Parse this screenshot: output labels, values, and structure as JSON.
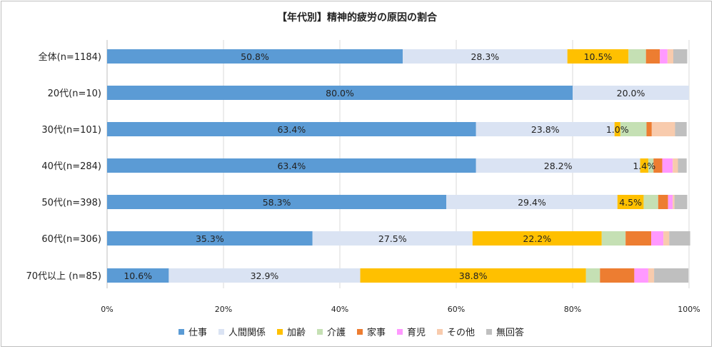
{
  "chart_data": {
    "type": "bar",
    "orientation": "horizontal",
    "stacked": true,
    "title": "【年代別】精神的疲労の原因の割合",
    "categories": [
      "全体(n=1184)",
      "20代(n=10)",
      "30代(n=101)",
      "40代(n=284)",
      "50代(n=398)",
      "60代(n=306)",
      "70代以上 (n=85)"
    ],
    "series": [
      {
        "name": "仕事",
        "color": "#5b9bd5",
        "values": [
          50.8,
          80.0,
          63.4,
          63.4,
          58.3,
          35.3,
          10.6
        ]
      },
      {
        "name": "人間関係",
        "color": "#dae3f3",
        "values": [
          28.3,
          20.0,
          23.8,
          28.2,
          29.4,
          27.5,
          32.9
        ]
      },
      {
        "name": "加齢",
        "color": "#ffc000",
        "values": [
          10.5,
          0,
          1.0,
          1.4,
          4.5,
          22.2,
          38.8
        ]
      },
      {
        "name": "介護",
        "color": "#c5e0b4",
        "values": [
          3.0,
          0,
          4.5,
          0.9,
          2.5,
          4.1,
          2.4
        ]
      },
      {
        "name": "家事",
        "color": "#ed7d31",
        "values": [
          2.4,
          0,
          0.9,
          1.5,
          1.7,
          4.4,
          5.9
        ]
      },
      {
        "name": "育児",
        "color": "#ff99ff",
        "values": [
          1.3,
          0,
          0,
          1.8,
          0.8,
          2.1,
          2.4
        ]
      },
      {
        "name": "その他",
        "color": "#f8cbad",
        "values": [
          1.0,
          0,
          4.0,
          0.9,
          0.3,
          1.0,
          1.0
        ]
      },
      {
        "name": "無回答",
        "color": "#bfbfbf",
        "values": [
          2.4,
          0,
          2.0,
          1.5,
          2.2,
          3.6,
          5.9
        ]
      }
    ],
    "data_labels": [
      [
        "50.8%",
        "28.3%",
        "10.5%",
        "",
        "",
        "",
        "",
        ""
      ],
      [
        "80.0%",
        "20.0%",
        "",
        "",
        "",
        "",
        "",
        ""
      ],
      [
        "63.4%",
        "23.8%",
        "1.0%",
        "",
        "",
        "",
        "",
        ""
      ],
      [
        "63.4%",
        "28.2%",
        "1.4%",
        "",
        "",
        "",
        "",
        ""
      ],
      [
        "58.3%",
        "29.4%",
        "4.5%",
        "",
        "",
        "",
        "",
        ""
      ],
      [
        "35.3%",
        "27.5%",
        "22.2%",
        "",
        "",
        "",
        "",
        ""
      ],
      [
        "10.6%",
        "32.9%",
        "38.8%",
        "",
        "",
        "",
        "",
        ""
      ]
    ],
    "xlim": [
      0,
      100
    ],
    "x_ticks": [
      0,
      20,
      40,
      60,
      80,
      100
    ],
    "x_tick_labels": [
      "0%",
      "20%",
      "40%",
      "60%",
      "80%",
      "100%"
    ],
    "grid": true,
    "legend_position": "bottom"
  }
}
